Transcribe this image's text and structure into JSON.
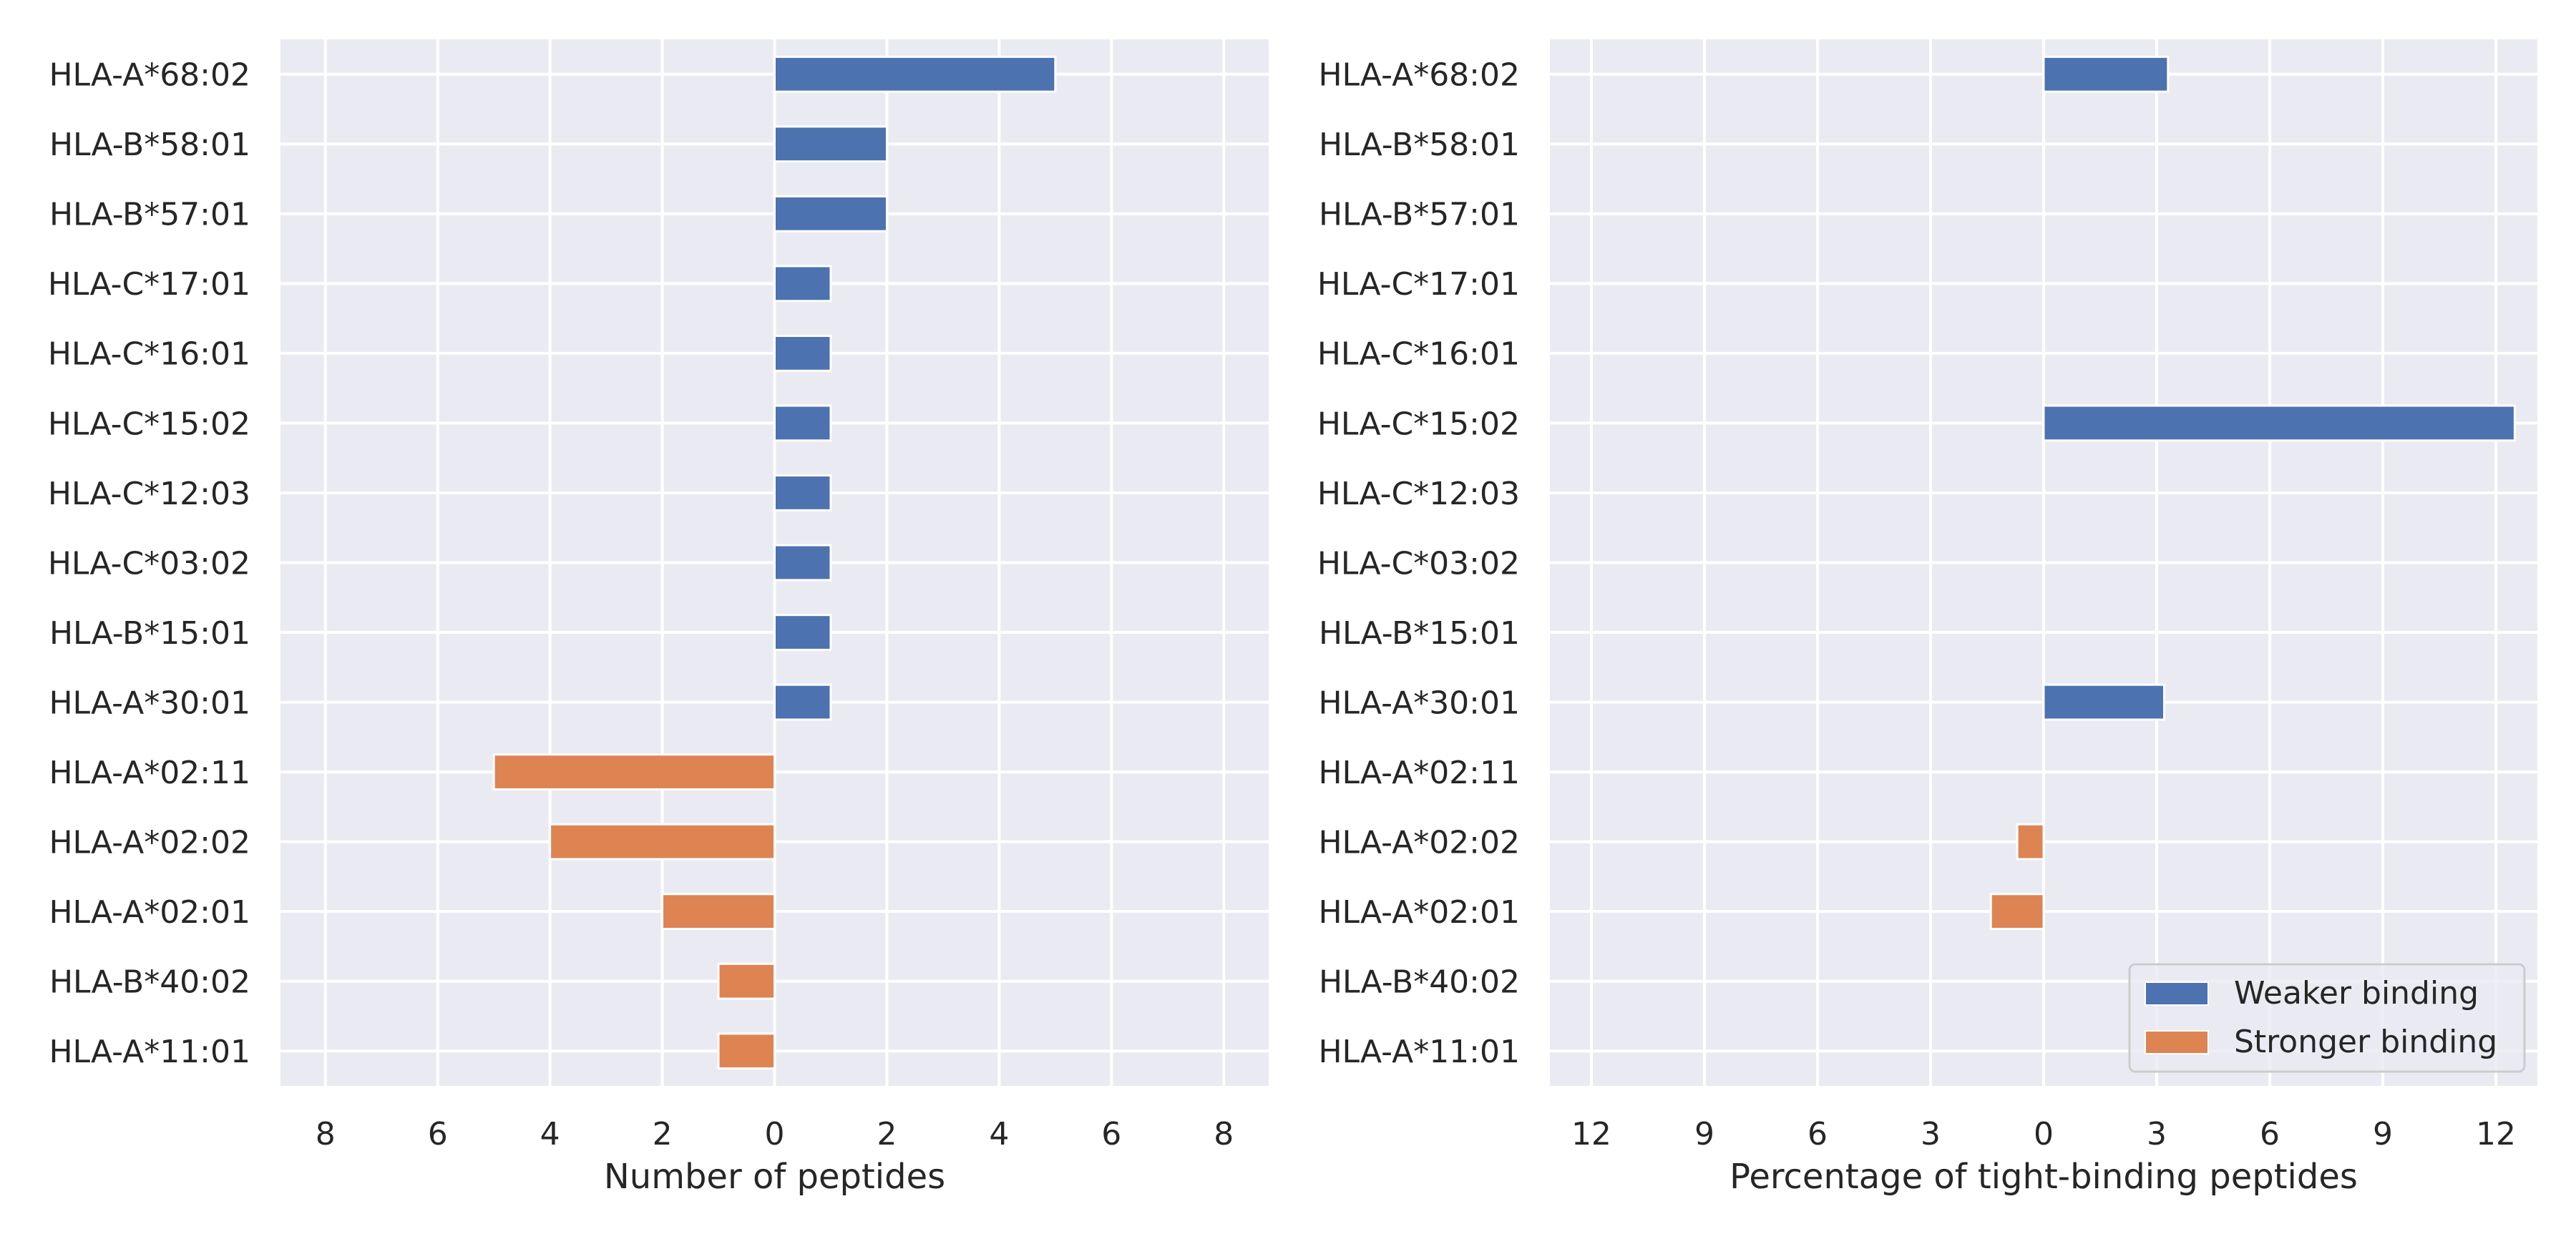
{
  "chart_data": [
    {
      "type": "bar",
      "orientation": "horizontal",
      "categories": [
        "HLA-A*68:02",
        "HLA-B*58:01",
        "HLA-B*57:01",
        "HLA-C*17:01",
        "HLA-C*16:01",
        "HLA-C*15:02",
        "HLA-C*12:03",
        "HLA-C*03:02",
        "HLA-B*15:01",
        "HLA-A*30:01",
        "HLA-A*02:11",
        "HLA-A*02:02",
        "HLA-A*02:01",
        "HLA-B*40:02",
        "HLA-A*11:01"
      ],
      "series": [
        {
          "name": "Weaker binding",
          "color": "#4c72b0",
          "values": [
            5,
            2,
            2,
            1,
            1,
            1,
            1,
            1,
            1,
            1,
            0,
            0,
            0,
            0,
            0
          ]
        },
        {
          "name": "Stronger binding",
          "color": "#dd8452",
          "values": [
            0,
            0,
            0,
            0,
            0,
            0,
            0,
            0,
            0,
            0,
            -5,
            -4,
            -2,
            -1,
            -1
          ]
        }
      ],
      "xlabel": "Number of peptides",
      "xlim": [
        -8.8,
        8.8
      ],
      "xticks": [
        -8,
        -6,
        -4,
        -2,
        0,
        2,
        4,
        6,
        8
      ],
      "xtick_labels": [
        "8",
        "6",
        "4",
        "2",
        "0",
        "2",
        "4",
        "6",
        "8"
      ],
      "grid": true,
      "background": "#eaeaf2"
    },
    {
      "type": "bar",
      "orientation": "horizontal",
      "categories": [
        "HLA-A*68:02",
        "HLA-B*58:01",
        "HLA-B*57:01",
        "HLA-C*17:01",
        "HLA-C*16:01",
        "HLA-C*15:02",
        "HLA-C*12:03",
        "HLA-C*03:02",
        "HLA-B*15:01",
        "HLA-A*30:01",
        "HLA-A*02:11",
        "HLA-A*02:02",
        "HLA-A*02:01",
        "HLA-B*40:02",
        "HLA-A*11:01"
      ],
      "series": [
        {
          "name": "Weaker binding",
          "color": "#4c72b0",
          "values": [
            3.3,
            0,
            0,
            0,
            0,
            12.5,
            0,
            0,
            0,
            3.2,
            0,
            0,
            0,
            0,
            0
          ]
        },
        {
          "name": "Stronger binding",
          "color": "#dd8452",
          "values": [
            0,
            0,
            0,
            0,
            0,
            0,
            0,
            0,
            0,
            0,
            0,
            -0.7,
            -1.4,
            0,
            0
          ]
        }
      ],
      "xlabel": "Percentage of tight-binding peptides",
      "xlim": [
        -13.1,
        13.1
      ],
      "xticks": [
        -12,
        -9,
        -6,
        -3,
        0,
        3,
        6,
        9,
        12
      ],
      "xtick_labels": [
        "12",
        "9",
        "6",
        "3",
        "0",
        "3",
        "6",
        "9",
        "12"
      ],
      "grid": true,
      "background": "#eaeaf2",
      "legend": {
        "position": "lower-right",
        "entries": [
          "Weaker binding",
          "Stronger binding"
        ]
      }
    }
  ]
}
